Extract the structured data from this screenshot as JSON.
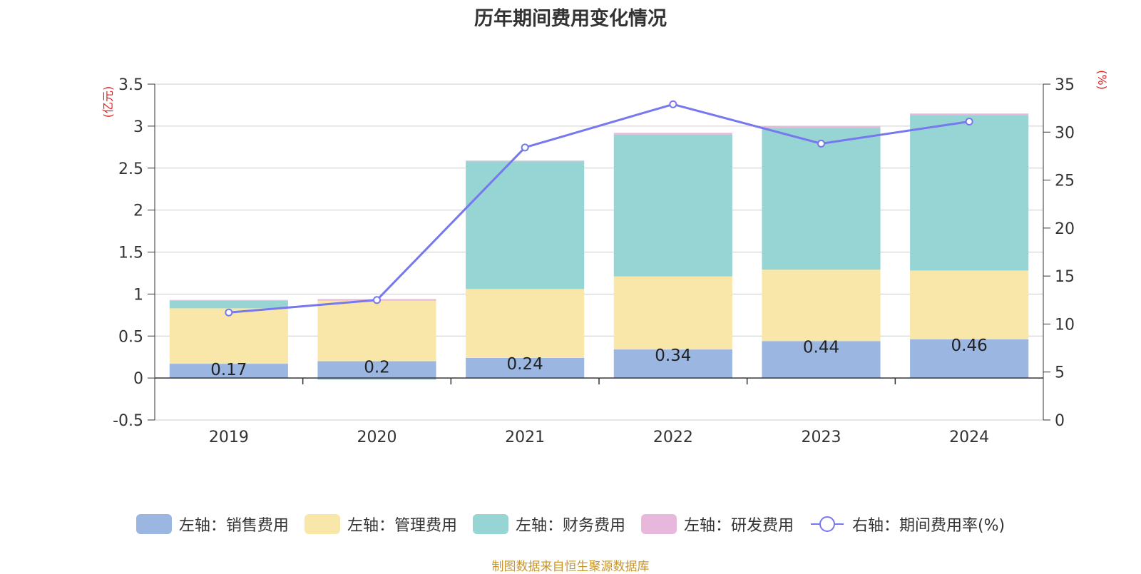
{
  "chart_data": {
    "type": "bar",
    "title": "历年期间费用变化情况",
    "categories": [
      "2019",
      "2020",
      "2021",
      "2022",
      "2023",
      "2024"
    ],
    "left_axis": {
      "unit_label": "(亿元)",
      "ylim": [
        -0.5,
        3.5
      ],
      "ticks": [
        "-0.5",
        "0",
        "0.5",
        "1",
        "1.5",
        "2",
        "2.5",
        "3",
        "3.5"
      ]
    },
    "right_axis": {
      "unit_label": "(%)",
      "ylim": [
        0,
        35
      ],
      "ticks": [
        "0",
        "5",
        "10",
        "15",
        "20",
        "25",
        "30",
        "35"
      ]
    },
    "series": [
      {
        "name": "左轴：销售费用",
        "type": "bar",
        "color": "#9bb7e1",
        "values": [
          0.17,
          0.2,
          0.24,
          0.34,
          0.44,
          0.46
        ],
        "labels": [
          "0.17",
          "0.2",
          "0.24",
          "0.34",
          "0.44",
          "0.46"
        ]
      },
      {
        "name": "左轴：管理费用",
        "type": "bar",
        "color": "#f8e7a8",
        "values": [
          0.66,
          0.72,
          0.82,
          0.87,
          0.85,
          0.82
        ]
      },
      {
        "name": "左轴：财务费用",
        "type": "bar",
        "color": "#97d4d4",
        "values": [
          0.09,
          -0.02,
          1.52,
          1.69,
          1.69,
          1.85
        ]
      },
      {
        "name": "左轴：研发费用",
        "type": "bar",
        "color": "#e8b8dc",
        "values": [
          0.01,
          0.02,
          0.01,
          0.02,
          0.02,
          0.02
        ]
      },
      {
        "name": "右轴：期间费用率(%)",
        "type": "line",
        "color": "#7777ee",
        "values": [
          11.2,
          12.5,
          28.4,
          32.9,
          28.8,
          31.1
        ]
      }
    ],
    "grid": true,
    "legend_position": "bottom",
    "source_note": "制图数据来自恒生聚源数据库"
  }
}
